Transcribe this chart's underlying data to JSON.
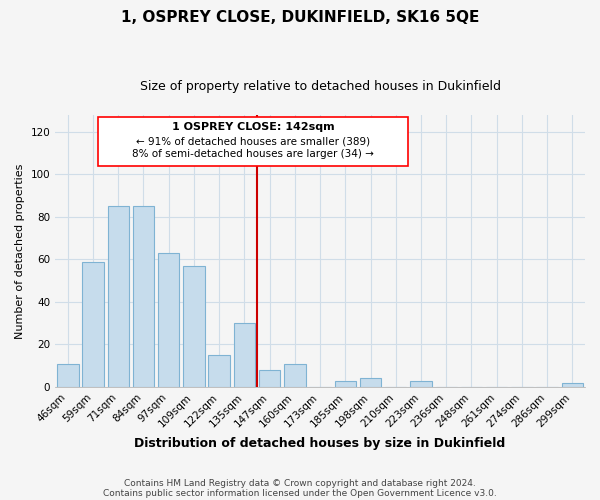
{
  "title": "1, OSPREY CLOSE, DUKINFIELD, SK16 5QE",
  "subtitle": "Size of property relative to detached houses in Dukinfield",
  "xlabel": "Distribution of detached houses by size in Dukinfield",
  "ylabel": "Number of detached properties",
  "categories": [
    "46sqm",
    "59sqm",
    "71sqm",
    "84sqm",
    "97sqm",
    "109sqm",
    "122sqm",
    "135sqm",
    "147sqm",
    "160sqm",
    "173sqm",
    "185sqm",
    "198sqm",
    "210sqm",
    "223sqm",
    "236sqm",
    "248sqm",
    "261sqm",
    "274sqm",
    "286sqm",
    "299sqm"
  ],
  "values": [
    11,
    59,
    85,
    85,
    63,
    57,
    15,
    30,
    8,
    11,
    0,
    3,
    4,
    0,
    3,
    0,
    0,
    0,
    0,
    0,
    2
  ],
  "bar_color": "#c6dcec",
  "bar_edge_color": "#7fb3d3",
  "vline_color": "#cc0000",
  "vline_x_index": 8,
  "ylim": [
    0,
    128
  ],
  "yticks": [
    0,
    20,
    40,
    60,
    80,
    100,
    120
  ],
  "annotation_title": "1 OSPREY CLOSE: 142sqm",
  "annotation_line1": "← 91% of detached houses are smaller (389)",
  "annotation_line2": "8% of semi-detached houses are larger (34) →",
  "footnote1": "Contains HM Land Registry data © Crown copyright and database right 2024.",
  "footnote2": "Contains public sector information licensed under the Open Government Licence v3.0.",
  "bg_color": "#f5f5f5",
  "grid_color": "#d0dde8",
  "title_fontsize": 11,
  "subtitle_fontsize": 9,
  "ylabel_fontsize": 8,
  "xlabel_fontsize": 9,
  "tick_fontsize": 7.5,
  "footnote_fontsize": 6.5
}
